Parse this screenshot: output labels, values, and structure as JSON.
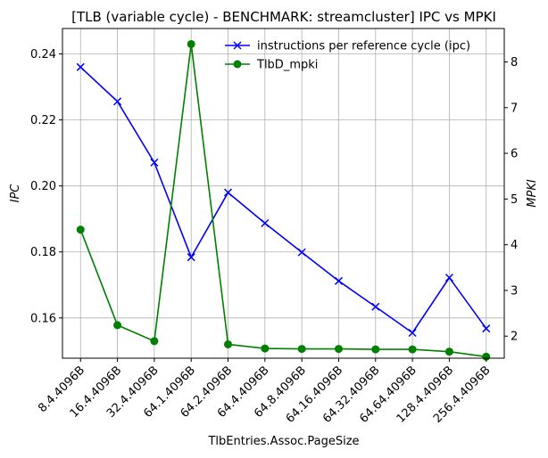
{
  "chart_data": {
    "type": "line",
    "title": "[TLB (variable cycle) - BENCHMARK: streamcluster]  IPC vs MPKI",
    "xlabel": "TlbEntries.Assoc.PageSize",
    "ylabel_left": "IPC",
    "ylabel_right": "MPKI",
    "categories": [
      "8.4.4096B",
      "16.4.4096B",
      "32.4.4096B",
      "64.1.4096B",
      "64.2.4096B",
      "64.4.4096B",
      "64.8.4096B",
      "64.16.4096B",
      "64.32.4096B",
      "64.64.4096B",
      "128.4.4096B",
      "256.4.4096B"
    ],
    "ylim_left": [
      0.1478,
      0.2477
    ],
    "ylim_right": [
      1.517,
      8.731
    ],
    "yticks_left": [
      0.16,
      0.18,
      0.2,
      0.22,
      0.24
    ],
    "yticks_right": [
      2,
      3,
      4,
      5,
      6,
      7,
      8
    ],
    "grid": true,
    "legend_position": "top-right",
    "series": [
      {
        "name": "instructions per reference cycle (ipc)",
        "axis": "left",
        "color": "#0000ff",
        "marker": "x",
        "values": [
          0.236,
          0.2256,
          0.2071,
          0.1784,
          0.198,
          0.1887,
          0.1799,
          0.1712,
          0.1634,
          0.1555,
          0.1722,
          0.1568
        ]
      },
      {
        "name": "TlbD_mpki",
        "axis": "right",
        "color": "#008000",
        "marker": "o",
        "values": [
          4.33,
          2.24,
          1.89,
          8.39,
          1.82,
          1.73,
          1.72,
          1.72,
          1.71,
          1.71,
          1.66,
          1.55
        ]
      }
    ]
  }
}
